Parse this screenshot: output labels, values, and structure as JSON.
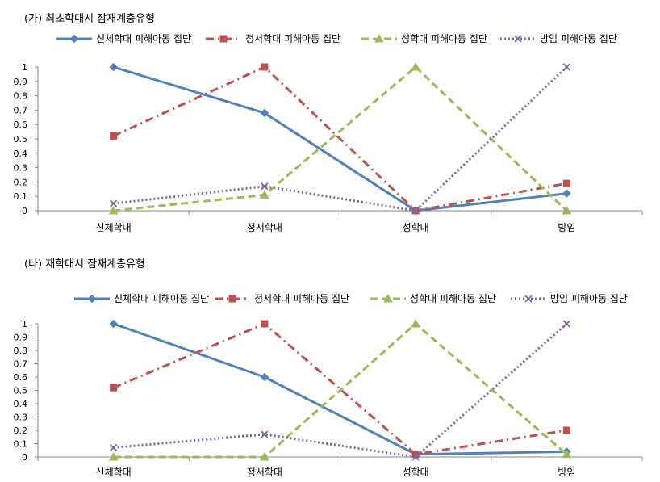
{
  "chart_data": [
    {
      "type": "line",
      "title": "(가) 최초학대시 잠재계층유형",
      "categories": [
        "신체학대",
        "정서학대",
        "성학대",
        "방임"
      ],
      "ylim": [
        0,
        1
      ],
      "yticks": [
        "0",
        "0.1",
        "0.2",
        "0.3",
        "0.4",
        "0.5",
        "0.6",
        "0.7",
        "0.8",
        "0.9",
        "1"
      ],
      "legend": "top",
      "grid": false,
      "series": [
        {
          "name": "신체학대 피해아동 집단",
          "color": "#4f81bd",
          "marker": "diamond",
          "dash": "solid",
          "values": [
            1.0,
            0.68,
            0.0,
            0.12
          ]
        },
        {
          "name": "정서학대 피해아동 집단",
          "color": "#c0504d",
          "marker": "square",
          "dash": "dashdot",
          "values": [
            0.52,
            1.0,
            0.0,
            0.19
          ]
        },
        {
          "name": "성학대 피해아동 집단",
          "color": "#9bbb59",
          "marker": "triangle",
          "dash": "dash",
          "values": [
            0.0,
            0.11,
            1.0,
            0.0
          ]
        },
        {
          "name": "방임 피해아동 집단",
          "color": "#8064a2",
          "marker": "x",
          "dash": "dot",
          "values": [
            0.05,
            0.17,
            0.0,
            1.0
          ]
        }
      ]
    },
    {
      "type": "line",
      "title": "(나) 재학대시 잠재계층유형",
      "categories": [
        "신체학대",
        "정서학대",
        "성학대",
        "방임"
      ],
      "ylim": [
        0,
        1
      ],
      "yticks": [
        "0",
        "0.1",
        "0.2",
        "0.3",
        "0.4",
        "0.5",
        "0.6",
        "0.7",
        "0.8",
        "0.9",
        "1"
      ],
      "legend": "top",
      "grid": false,
      "series": [
        {
          "name": "신체학대 피해아동 집단",
          "color": "#4f81bd",
          "marker": "diamond",
          "dash": "solid",
          "values": [
            1.0,
            0.6,
            0.02,
            0.04
          ]
        },
        {
          "name": "정서학대 피해아동 집단",
          "color": "#c0504d",
          "marker": "square",
          "dash": "dashdot",
          "values": [
            0.52,
            1.0,
            0.02,
            0.2
          ]
        },
        {
          "name": "성학대 피해아동 집단",
          "color": "#9bbb59",
          "marker": "triangle",
          "dash": "dash",
          "values": [
            0.0,
            0.0,
            1.0,
            0.02
          ]
        },
        {
          "name": "방임 피해아동 집단",
          "color": "#8064a2",
          "marker": "x",
          "dash": "dot",
          "values": [
            0.07,
            0.17,
            0.0,
            1.0
          ]
        }
      ]
    }
  ]
}
